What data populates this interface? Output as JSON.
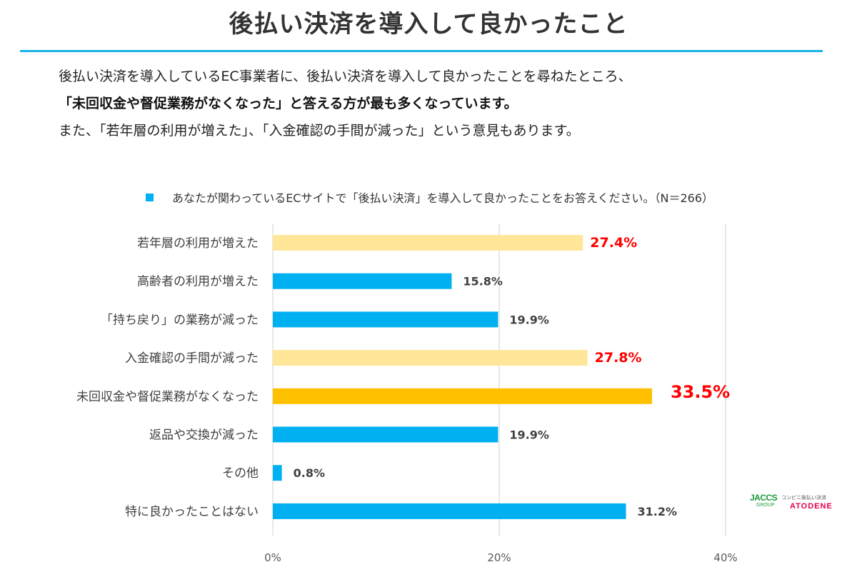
{
  "title": "後払い決済を導入して良かったこと",
  "intro": {
    "line1": "後払い決済を導入しているEC事業者に、後払い決済を導入して良かったことを尋ねたところ、",
    "line2": "「未回収金や督促業務がなくなった」と答える方が最も多くなっています。",
    "line3": "また、「若年層の利用が増えた」、「入金確認の手間が減った」という意見もあります。"
  },
  "legend": {
    "label": "あなたが関わっているECサイトで「後払い決済」を導入して良かったことをお答えください。（N＝266）"
  },
  "colors": {
    "accent_line": "#19b4e6",
    "bar_default": "#00b0f0",
    "bar_highlight_light": "#ffe699",
    "bar_highlight_strong": "#ffc000",
    "label_highlight": "#ff0000",
    "label_default": "#404040"
  },
  "chart_data": {
    "type": "bar",
    "orientation": "horizontal",
    "categories": [
      "若年層の利用が増えた",
      "高齢者の利用が増えた",
      "「持ち戻り」の業務が減った",
      "入金確認の手間が減った",
      "未回収金や督促業務がなくなった",
      "返品や交換が減った",
      "その他",
      "特に良かったことはない"
    ],
    "values": [
      27.4,
      15.8,
      19.9,
      27.8,
      33.5,
      19.9,
      0.8,
      31.2
    ],
    "value_labels": [
      "27.4%",
      "15.8%",
      "19.9%",
      "27.8%",
      "33.5%",
      "19.9%",
      "0.8%",
      "31.2%"
    ],
    "highlight": [
      "light",
      "none",
      "none",
      "light",
      "strong",
      "none",
      "none",
      "none"
    ],
    "series": [
      {
        "name": "あなたが関わっているECサイトで「後払い決済」を導入して良かったことをお答えください。（N＝266）",
        "values": [
          27.4,
          15.8,
          19.9,
          27.8,
          33.5,
          19.9,
          0.8,
          31.2
        ]
      }
    ],
    "xticks": [
      "0%",
      "20%",
      "40%"
    ],
    "xtick_values": [
      0,
      20,
      40
    ],
    "xlim": [
      0,
      40
    ],
    "grid": true,
    "legend_position": "top"
  },
  "logo": {
    "brand": "JACCS",
    "group": "GROUP",
    "tagline": "コンビニ後払い決済",
    "product": "ATODENE"
  }
}
